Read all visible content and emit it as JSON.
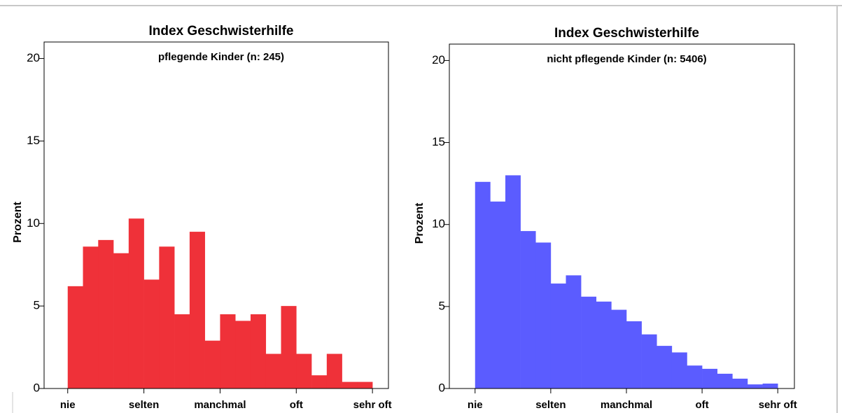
{
  "chart_data": [
    {
      "type": "histogram",
      "title": "Index Geschwisterhilfe",
      "subtitle": "pflegende Kinder (n: 245)",
      "y_label": "Prozent",
      "color": "#ef3139",
      "bins": [
        1,
        1.2,
        1.4,
        1.6,
        1.8,
        2,
        2.2,
        2.4,
        2.6,
        2.8,
        3,
        3.2,
        3.4,
        3.6,
        3.8,
        4,
        4.2,
        4.4,
        4.6,
        4.8,
        5
      ],
      "values": [
        6.2,
        8.6,
        9.0,
        8.2,
        10.3,
        6.6,
        8.6,
        4.5,
        9.5,
        2.9,
        4.5,
        4.1,
        4.5,
        2.1,
        5.0,
        2.1,
        0.8,
        2.1,
        0.4,
        0.4
      ],
      "xlim": [
        0.69,
        5.21
      ],
      "ylim": [
        0,
        21
      ],
      "xticks": [
        {
          "value": 1,
          "label": "nie"
        },
        {
          "value": 2,
          "label": "selten"
        },
        {
          "value": 3,
          "label": "manchmal"
        },
        {
          "value": 4,
          "label": "oft"
        },
        {
          "value": 5,
          "label": "sehr oft"
        }
      ],
      "yticks": [
        0,
        5,
        10,
        15,
        20
      ]
    },
    {
      "type": "histogram",
      "title": "Index Geschwisterhilfe",
      "subtitle": "nicht pflegende Kinder (n: 5406)",
      "y_label": "Prozent",
      "color": "#5b5cff",
      "bins": [
        1,
        1.2,
        1.4,
        1.6,
        1.8,
        2,
        2.2,
        2.4,
        2.6,
        2.8,
        3,
        3.2,
        3.4,
        3.6,
        3.8,
        4,
        4.2,
        4.4,
        4.6,
        4.8,
        5
      ],
      "values": [
        12.6,
        11.4,
        13.0,
        9.6,
        8.9,
        6.4,
        6.9,
        5.6,
        5.3,
        4.8,
        4.1,
        3.3,
        2.6,
        2.2,
        1.4,
        1.2,
        0.9,
        0.6,
        0.25,
        0.3
      ],
      "xlim": [
        0.66,
        5.22
      ],
      "ylim": [
        0,
        21
      ],
      "xticks": [
        {
          "value": 1,
          "label": "nie"
        },
        {
          "value": 2,
          "label": "selten"
        },
        {
          "value": 3,
          "label": "manchmal"
        },
        {
          "value": 4,
          "label": "oft"
        },
        {
          "value": 5,
          "label": "sehr oft"
        }
      ],
      "yticks": [
        0,
        5,
        10,
        15,
        20
      ]
    }
  ]
}
